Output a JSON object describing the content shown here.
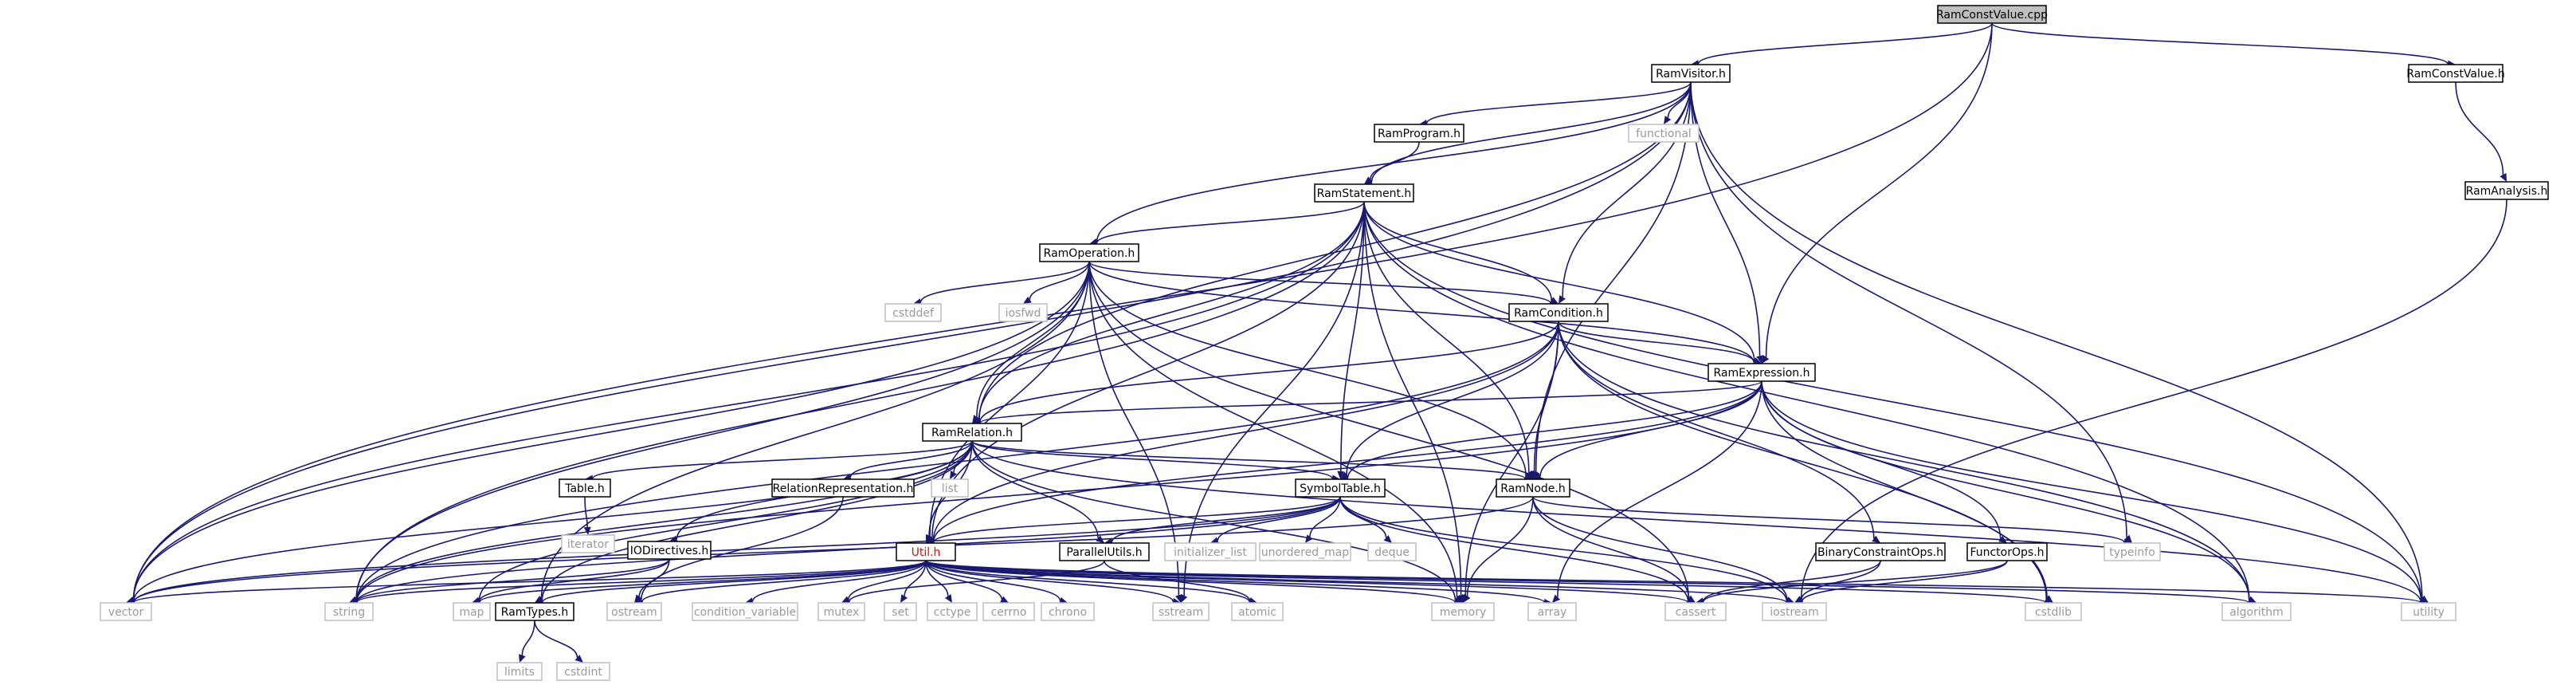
{
  "graph": {
    "type": "include-dependency-graph",
    "root": "RamConstValue.cpp",
    "nodes": [
      {
        "id": "RamConstValue_cpp",
        "label": "RamConstValue.cpp",
        "kind": "root"
      },
      {
        "id": "RamVisitor_h",
        "label": "RamVisitor.h",
        "kind": "file"
      },
      {
        "id": "RamConstValue_h",
        "label": "RamConstValue.h",
        "kind": "file"
      },
      {
        "id": "RamAnalysis_h",
        "label": "RamAnalysis.h",
        "kind": "file"
      },
      {
        "id": "RamProgram_h",
        "label": "RamProgram.h",
        "kind": "file"
      },
      {
        "id": "functional",
        "label": "functional",
        "kind": "external"
      },
      {
        "id": "RamStatement_h",
        "label": "RamStatement.h",
        "kind": "file"
      },
      {
        "id": "RamOperation_h",
        "label": "RamOperation.h",
        "kind": "file"
      },
      {
        "id": "cstddef",
        "label": "cstddef",
        "kind": "external"
      },
      {
        "id": "iosfwd",
        "label": "iosfwd",
        "kind": "external"
      },
      {
        "id": "RamCondition_h",
        "label": "RamCondition.h",
        "kind": "file"
      },
      {
        "id": "RamExpression_h",
        "label": "RamExpression.h",
        "kind": "file"
      },
      {
        "id": "RamRelation_h",
        "label": "RamRelation.h",
        "kind": "file"
      },
      {
        "id": "list",
        "label": "list",
        "kind": "external"
      },
      {
        "id": "Table_h",
        "label": "Table.h",
        "kind": "file"
      },
      {
        "id": "RelationRepresentation_h",
        "label": "RelationRepresentation.h",
        "kind": "file"
      },
      {
        "id": "SymbolTable_h",
        "label": "SymbolTable.h",
        "kind": "file"
      },
      {
        "id": "RamNode_h",
        "label": "RamNode.h",
        "kind": "file"
      },
      {
        "id": "iterator",
        "label": "iterator",
        "kind": "external"
      },
      {
        "id": "IODirectives_h",
        "label": "IODirectives.h",
        "kind": "file"
      },
      {
        "id": "ParallelUtils_h",
        "label": "ParallelUtils.h",
        "kind": "file"
      },
      {
        "id": "initializer_list",
        "label": "initializer_list",
        "kind": "external"
      },
      {
        "id": "unordered_map",
        "label": "unordered_map",
        "kind": "external"
      },
      {
        "id": "deque",
        "label": "deque",
        "kind": "external"
      },
      {
        "id": "BinaryConstraintOps_h",
        "label": "BinaryConstraintOps.h",
        "kind": "file"
      },
      {
        "id": "FunctorOps_h",
        "label": "FunctorOps.h",
        "kind": "file"
      },
      {
        "id": "typeinfo",
        "label": "typeinfo",
        "kind": "external"
      },
      {
        "id": "Util_h",
        "label": "Util.h",
        "kind": "highlight"
      },
      {
        "id": "vector",
        "label": "vector",
        "kind": "external"
      },
      {
        "id": "string",
        "label": "string",
        "kind": "external"
      },
      {
        "id": "map",
        "label": "map",
        "kind": "external"
      },
      {
        "id": "RamTypes_h",
        "label": "RamTypes.h",
        "kind": "file"
      },
      {
        "id": "ostream",
        "label": "ostream",
        "kind": "external"
      },
      {
        "id": "condition_variable",
        "label": "condition_variable",
        "kind": "external"
      },
      {
        "id": "mutex",
        "label": "mutex",
        "kind": "external"
      },
      {
        "id": "set",
        "label": "set",
        "kind": "external"
      },
      {
        "id": "cctype",
        "label": "cctype",
        "kind": "external"
      },
      {
        "id": "cerrno",
        "label": "cerrno",
        "kind": "external"
      },
      {
        "id": "chrono",
        "label": "chrono",
        "kind": "external"
      },
      {
        "id": "sstream",
        "label": "sstream",
        "kind": "external"
      },
      {
        "id": "atomic",
        "label": "atomic",
        "kind": "external"
      },
      {
        "id": "memory",
        "label": "memory",
        "kind": "external"
      },
      {
        "id": "array",
        "label": "array",
        "kind": "external"
      },
      {
        "id": "cassert",
        "label": "cassert",
        "kind": "external"
      },
      {
        "id": "iostream",
        "label": "iostream",
        "kind": "external"
      },
      {
        "id": "cstdlib",
        "label": "cstdlib",
        "kind": "external"
      },
      {
        "id": "algorithm",
        "label": "algorithm",
        "kind": "external"
      },
      {
        "id": "utility",
        "label": "utility",
        "kind": "external"
      },
      {
        "id": "limits",
        "label": "limits",
        "kind": "external"
      },
      {
        "id": "cstdint",
        "label": "cstdint",
        "kind": "external"
      }
    ],
    "edges": [
      [
        "RamConstValue_cpp",
        "RamVisitor_h"
      ],
      [
        "RamConstValue_cpp",
        "RamConstValue_h"
      ],
      [
        "RamConstValue_cpp",
        "vector"
      ],
      [
        "RamConstValue_cpp",
        "RamExpression_h"
      ],
      [
        "RamConstValue_h",
        "RamAnalysis_h"
      ],
      [
        "RamAnalysis_h",
        "iostream"
      ],
      [
        "RamVisitor_h",
        "RamProgram_h"
      ],
      [
        "RamVisitor_h",
        "functional"
      ],
      [
        "RamVisitor_h",
        "RamStatement_h"
      ],
      [
        "RamVisitor_h",
        "RamOperation_h"
      ],
      [
        "RamVisitor_h",
        "RamCondition_h"
      ],
      [
        "RamVisitor_h",
        "RamExpression_h"
      ],
      [
        "RamVisitor_h",
        "RamRelation_h"
      ],
      [
        "RamVisitor_h",
        "RamNode_h"
      ],
      [
        "RamVisitor_h",
        "typeinfo"
      ],
      [
        "RamVisitor_h",
        "vector"
      ],
      [
        "RamVisitor_h",
        "utility"
      ],
      [
        "RamProgram_h",
        "RamStatement_h"
      ],
      [
        "RamStatement_h",
        "RamOperation_h"
      ],
      [
        "RamStatement_h",
        "RamRelation_h"
      ],
      [
        "RamStatement_h",
        "RamCondition_h"
      ],
      [
        "RamStatement_h",
        "RamExpression_h"
      ],
      [
        "RamStatement_h",
        "RamNode_h"
      ],
      [
        "RamStatement_h",
        "SymbolTable_h"
      ],
      [
        "RamStatement_h",
        "Util_h"
      ],
      [
        "RamStatement_h",
        "string"
      ],
      [
        "RamStatement_h",
        "memory"
      ],
      [
        "RamStatement_h",
        "algorithm"
      ],
      [
        "RamStatement_h",
        "utility"
      ],
      [
        "RamStatement_h",
        "sstream"
      ],
      [
        "RamStatement_h",
        "vector"
      ],
      [
        "RamOperation_h",
        "cstddef"
      ],
      [
        "RamOperation_h",
        "iosfwd"
      ],
      [
        "RamOperation_h",
        "RamCondition_h"
      ],
      [
        "RamOperation_h",
        "RamExpression_h"
      ],
      [
        "RamOperation_h",
        "RamRelation_h"
      ],
      [
        "RamOperation_h",
        "RamNode_h"
      ],
      [
        "RamOperation_h",
        "Util_h"
      ],
      [
        "RamOperation_h",
        "RamTypes_h"
      ],
      [
        "RamOperation_h",
        "string"
      ],
      [
        "RamOperation_h",
        "vector"
      ],
      [
        "RamOperation_h",
        "memory"
      ],
      [
        "RamOperation_h",
        "cassert"
      ],
      [
        "RamOperation_h",
        "sstream"
      ],
      [
        "RamCondition_h",
        "RamExpression_h"
      ],
      [
        "RamCondition_h",
        "RamRelation_h"
      ],
      [
        "RamCondition_h",
        "RamNode_h"
      ],
      [
        "RamCondition_h",
        "SymbolTable_h"
      ],
      [
        "RamCondition_h",
        "BinaryConstraintOps_h"
      ],
      [
        "RamCondition_h",
        "Util_h"
      ],
      [
        "RamCondition_h",
        "string"
      ],
      [
        "RamCondition_h",
        "cstdlib"
      ],
      [
        "RamCondition_h",
        "algorithm"
      ],
      [
        "RamCondition_h",
        "memory"
      ],
      [
        "RamExpression_h",
        "RamRelation_h"
      ],
      [
        "RamExpression_h",
        "RamNode_h"
      ],
      [
        "RamExpression_h",
        "SymbolTable_h"
      ],
      [
        "RamExpression_h",
        "FunctorOps_h"
      ],
      [
        "RamExpression_h",
        "Util_h"
      ],
      [
        "RamExpression_h",
        "string"
      ],
      [
        "RamExpression_h",
        "array"
      ],
      [
        "RamExpression_h",
        "cstdlib"
      ],
      [
        "RamExpression_h",
        "algorithm"
      ],
      [
        "RamExpression_h",
        "utility"
      ],
      [
        "RamRelation_h",
        "list"
      ],
      [
        "RamRelation_h",
        "Table_h"
      ],
      [
        "RamRelation_h",
        "RelationRepresentation_h"
      ],
      [
        "RamRelation_h",
        "SymbolTable_h"
      ],
      [
        "RamRelation_h",
        "RamNode_h"
      ],
      [
        "RamRelation_h",
        "IODirectives_h"
      ],
      [
        "RamRelation_h",
        "ParallelUtils_h"
      ],
      [
        "RamRelation_h",
        "Util_h"
      ],
      [
        "RamRelation_h",
        "RamTypes_h"
      ],
      [
        "RamRelation_h",
        "string"
      ],
      [
        "RamRelation_h",
        "vector"
      ],
      [
        "RamRelation_h",
        "map"
      ],
      [
        "RamRelation_h",
        "utility"
      ],
      [
        "RamRelation_h",
        "memory"
      ],
      [
        "Table_h",
        "iterator"
      ],
      [
        "RelationRepresentation_h",
        "ostream"
      ],
      [
        "SymbolTable_h",
        "initializer_list"
      ],
      [
        "SymbolTable_h",
        "unordered_map"
      ],
      [
        "SymbolTable_h",
        "deque"
      ],
      [
        "SymbolTable_h",
        "ParallelUtils_h"
      ],
      [
        "SymbolTable_h",
        "Util_h"
      ],
      [
        "SymbolTable_h",
        "vector"
      ],
      [
        "SymbolTable_h",
        "string"
      ],
      [
        "SymbolTable_h",
        "cassert"
      ],
      [
        "SymbolTable_h",
        "iostream"
      ],
      [
        "RamNode_h",
        "typeinfo"
      ],
      [
        "RamNode_h",
        "memory"
      ],
      [
        "RamNode_h",
        "cassert"
      ],
      [
        "RamNode_h",
        "iostream"
      ],
      [
        "RamNode_h",
        "vector"
      ],
      [
        "IODirectives_h",
        "map"
      ],
      [
        "IODirectives_h",
        "string"
      ],
      [
        "IODirectives_h",
        "ostream"
      ],
      [
        "ParallelUtils_h",
        "atomic"
      ],
      [
        "ParallelUtils_h",
        "mutex"
      ],
      [
        "BinaryConstraintOps_h",
        "cassert"
      ],
      [
        "BinaryConstraintOps_h",
        "iostream"
      ],
      [
        "FunctorOps_h",
        "cassert"
      ],
      [
        "FunctorOps_h",
        "iostream"
      ],
      [
        "Util_h",
        "RamTypes_h"
      ],
      [
        "Util_h",
        "vector"
      ],
      [
        "Util_h",
        "string"
      ],
      [
        "Util_h",
        "map"
      ],
      [
        "Util_h",
        "ostream"
      ],
      [
        "Util_h",
        "condition_variable"
      ],
      [
        "Util_h",
        "mutex"
      ],
      [
        "Util_h",
        "set"
      ],
      [
        "Util_h",
        "cctype"
      ],
      [
        "Util_h",
        "cerrno"
      ],
      [
        "Util_h",
        "chrono"
      ],
      [
        "Util_h",
        "sstream"
      ],
      [
        "Util_h",
        "atomic"
      ],
      [
        "Util_h",
        "memory"
      ],
      [
        "Util_h",
        "array"
      ],
      [
        "Util_h",
        "cassert"
      ],
      [
        "Util_h",
        "iostream"
      ],
      [
        "Util_h",
        "cstdlib"
      ],
      [
        "Util_h",
        "algorithm"
      ],
      [
        "Util_h",
        "utility"
      ],
      [
        "RamTypes_h",
        "limits"
      ],
      [
        "RamTypes_h",
        "cstdint"
      ]
    ]
  }
}
